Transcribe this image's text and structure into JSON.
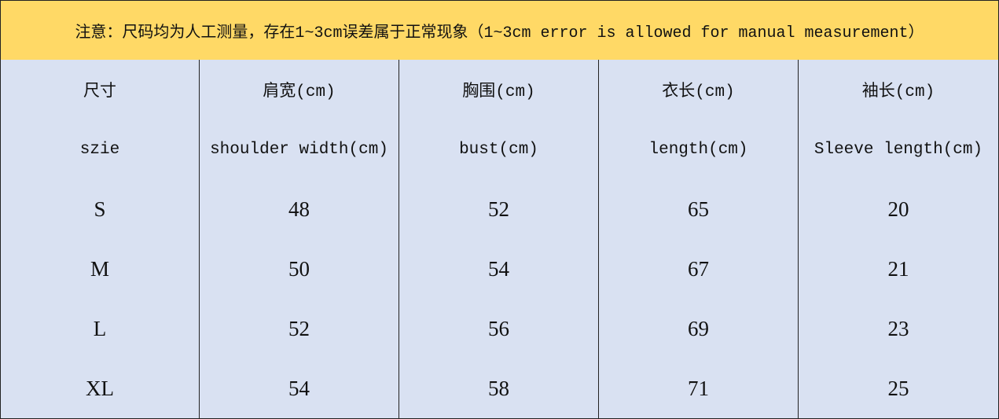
{
  "notice": "注意：尺码均为人工测量，存在1~3cm误差属于正常现象（1~3cm error is allowed for manual measurement）",
  "table": {
    "header_rows": [
      [
        "尺寸",
        "肩宽(cm)",
        "胸围(cm)",
        "衣长(cm)",
        "袖长(cm)"
      ],
      [
        "szie",
        "shoulder width(cm)",
        "bust(cm)",
        "length(cm)",
        "Sleeve length(cm)"
      ]
    ],
    "rows": [
      [
        "S",
        48,
        52,
        65,
        20
      ],
      [
        "M",
        50,
        54,
        67,
        21
      ],
      [
        "L",
        52,
        56,
        69,
        23
      ],
      [
        "XL",
        54,
        58,
        71,
        25
      ]
    ]
  }
}
